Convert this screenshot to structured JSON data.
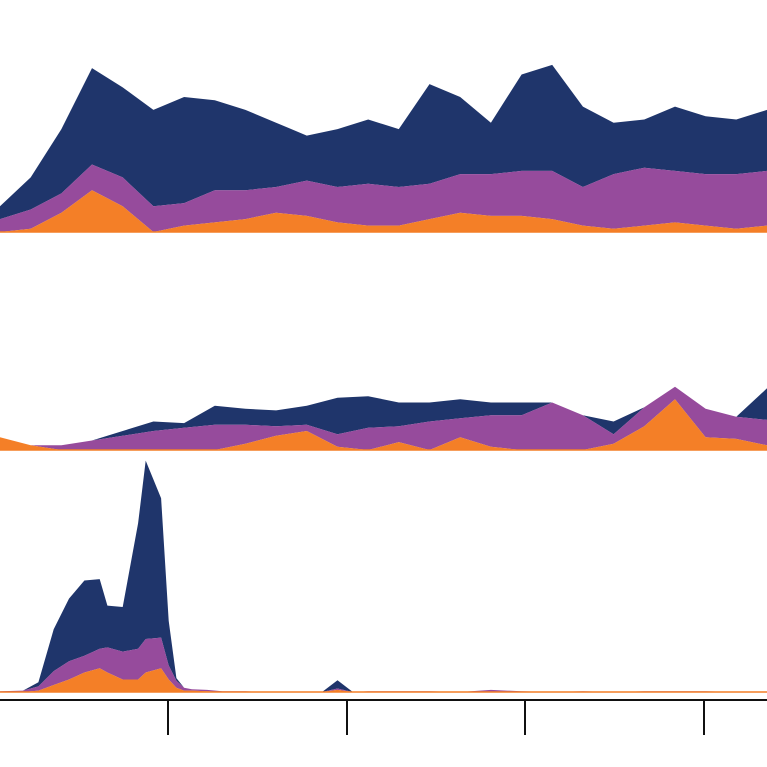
{
  "chart_data": [
    {
      "type": "area",
      "stacked": true,
      "x": [
        0,
        0.04,
        0.08,
        0.12,
        0.16,
        0.2,
        0.24,
        0.28,
        0.32,
        0.36,
        0.4,
        0.44,
        0.48,
        0.52,
        0.56,
        0.6,
        0.64,
        0.68,
        0.72,
        0.76,
        0.8,
        0.84,
        0.88,
        0.92,
        0.96,
        1.0
      ],
      "series": [
        {
          "color": "#f47f27",
          "values": [
            0,
            1,
            6,
            13,
            8,
            0,
            2,
            3,
            4,
            6,
            5,
            3,
            2,
            2,
            4,
            6,
            5,
            5,
            4,
            2,
            1,
            2,
            3,
            2,
            1,
            2
          ]
        },
        {
          "color": "#964b9c",
          "values": [
            4,
            6,
            6,
            8,
            9,
            8,
            7,
            10,
            9,
            8,
            11,
            11,
            13,
            12,
            11,
            12,
            13,
            14,
            15,
            12,
            17,
            18,
            16,
            16,
            17,
            17
          ]
        },
        {
          "color": "#1f356b",
          "values": [
            4,
            10,
            20,
            30,
            28,
            30,
            33,
            28,
            25,
            20,
            14,
            18,
            20,
            18,
            31,
            24,
            16,
            30,
            33,
            25,
            16,
            15,
            20,
            18,
            17,
            19
          ]
        }
      ]
    },
    {
      "type": "area",
      "stacked": true,
      "x": [
        0,
        0.04,
        0.08,
        0.12,
        0.16,
        0.2,
        0.24,
        0.28,
        0.32,
        0.36,
        0.4,
        0.44,
        0.48,
        0.52,
        0.56,
        0.6,
        0.64,
        0.68,
        0.72,
        0.76,
        0.8,
        0.84,
        0.88,
        0.92,
        0.96,
        1.0
      ],
      "series": [
        {
          "color": "#f47f27",
          "values": [
            8,
            3,
            0,
            0,
            0,
            0,
            0,
            0,
            4,
            9,
            12,
            2,
            0,
            5,
            0,
            8,
            2,
            0,
            0,
            0,
            4,
            15,
            32,
            8,
            7,
            3
          ]
        },
        {
          "color": "#964b9c",
          "values": [
            0,
            0,
            3,
            6,
            9,
            12,
            14,
            16,
            12,
            6,
            4,
            8,
            14,
            10,
            18,
            12,
            20,
            22,
            30,
            22,
            6,
            12,
            8,
            18,
            14,
            16
          ]
        },
        {
          "color": "#1f356b",
          "values": [
            0,
            0,
            0,
            0,
            3,
            6,
            3,
            12,
            10,
            10,
            12,
            23,
            20,
            15,
            12,
            12,
            8,
            8,
            0,
            0,
            8,
            0,
            0,
            0,
            0,
            20
          ]
        }
      ]
    },
    {
      "type": "area",
      "stacked": true,
      "x": [
        0,
        0.03,
        0.05,
        0.07,
        0.09,
        0.11,
        0.13,
        0.14,
        0.16,
        0.18,
        0.19,
        0.21,
        0.22,
        0.23,
        0.24,
        0.25,
        0.27,
        0.29,
        0.32,
        0.35,
        0.39,
        0.42,
        0.44,
        0.46,
        0.48,
        0.5,
        0.52,
        0.56,
        0.6,
        0.64,
        0.68,
        0.72,
        0.76,
        0.8,
        0.84,
        0.88,
        0.92,
        0.96,
        1.0
      ],
      "series": [
        {
          "color": "#f47f27",
          "values": [
            0,
            0,
            1,
            5,
            9,
            14,
            17,
            14,
            9,
            9,
            14,
            17,
            9,
            3,
            1,
            1,
            0.5,
            0,
            0,
            0,
            0,
            0,
            1.5,
            0,
            0,
            0,
            0,
            0,
            0,
            0,
            0,
            0,
            0,
            0,
            0,
            0,
            0,
            0,
            0
          ]
        },
        {
          "color": "#964b9c",
          "values": [
            0.5,
            1,
            3,
            10,
            13,
            12,
            14,
            18,
            20,
            22,
            24,
            22,
            10,
            5,
            2,
            1,
            1,
            0.5,
            0.5,
            0,
            0,
            0,
            1,
            0,
            0.5,
            0.5,
            0.5,
            0.5,
            0,
            1.5,
            0.5,
            0,
            0.5,
            0,
            0.5,
            0.5,
            0.5,
            0,
            0
          ]
        },
        {
          "color": "#1f356b",
          "values": [
            0,
            0,
            3,
            30,
            45,
            54,
            50,
            30,
            32,
            90,
            128,
            100,
            32,
            2,
            0,
            0,
            0,
            0,
            0,
            0,
            0,
            0,
            6,
            0,
            0,
            0,
            0,
            0,
            0,
            0,
            0,
            0,
            0,
            0,
            0,
            0,
            0,
            0,
            0
          ]
        }
      ]
    }
  ]
}
